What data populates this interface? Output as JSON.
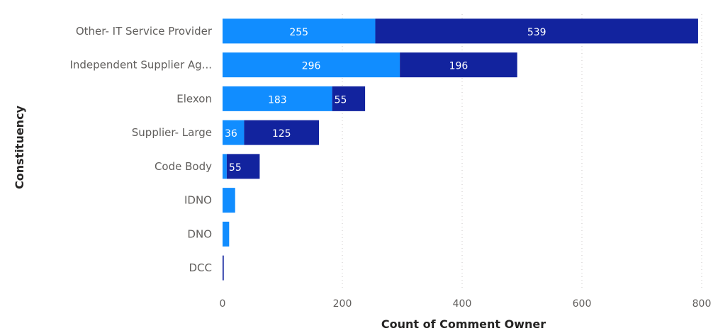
{
  "chart_data": {
    "type": "bar",
    "orientation": "horizontal",
    "stacked": true,
    "categories": [
      "Other- IT Service Provider",
      "Independent Supplier Ag...",
      "Elexon",
      "Supplier- Large",
      "Code Body",
      "IDNO",
      "DNO",
      "DCC"
    ],
    "series": [
      {
        "color": "#118dff",
        "values": [
          255,
          296,
          183,
          36,
          7,
          21,
          11,
          0
        ]
      },
      {
        "color": "#12239e",
        "values": [
          539,
          196,
          55,
          125,
          55,
          0,
          0,
          2
        ]
      }
    ],
    "data_labels": [
      [
        "255",
        "296",
        "183",
        "36",
        "",
        "",
        "",
        ""
      ],
      [
        "539",
        "196",
        "55",
        "125",
        "55",
        "",
        "",
        ""
      ]
    ],
    "xlabel": "Count of Comment Owner",
    "ylabel": "Constituency",
    "xlim": [
      0,
      800
    ],
    "xticks": [
      "0",
      "200",
      "400",
      "600",
      "800"
    ],
    "grid": true,
    "legend": "none"
  }
}
